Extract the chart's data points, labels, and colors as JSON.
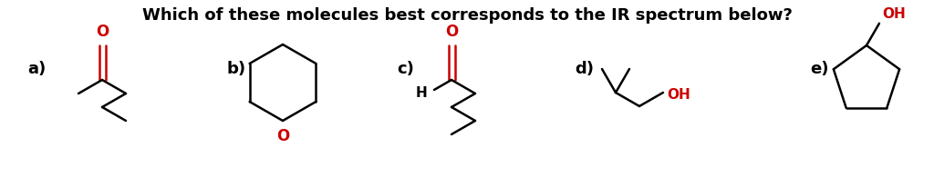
{
  "title": "Which of these molecules best corresponds to the IR spectrum below?",
  "title_fontsize": 13,
  "title_fontweight": "bold",
  "background_color": "#ffffff",
  "label_color": "#000000",
  "heteroatom_color": "#cc0000",
  "labels": [
    "a)",
    "b)",
    "c)",
    "d)",
    "e)"
  ],
  "lw": 1.8
}
